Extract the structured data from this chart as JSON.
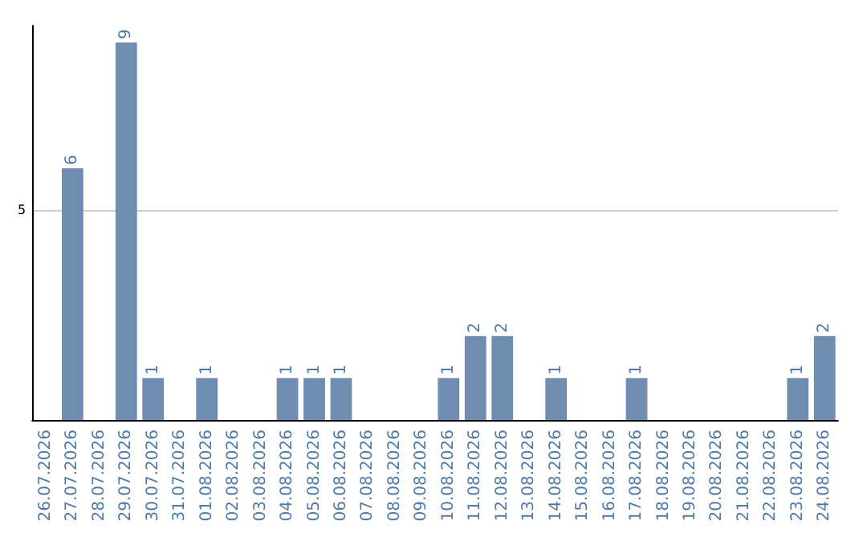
{
  "chart_data": {
    "type": "bar",
    "categories": [
      "26.07.2026",
      "27.07.2026",
      "28.07.2026",
      "29.07.2026",
      "30.07.2026",
      "31.07.2026",
      "01.08.2026",
      "02.08.2026",
      "03.08.2026",
      "04.08.2026",
      "05.08.2026",
      "06.08.2026",
      "07.08.2026",
      "08.08.2026",
      "09.08.2026",
      "10.08.2026",
      "11.08.2026",
      "12.08.2026",
      "13.08.2026",
      "14.08.2026",
      "15.08.2026",
      "16.08.2026",
      "17.08.2026",
      "18.08.2026",
      "19.08.2026",
      "20.08.2026",
      "21.08.2026",
      "22.08.2026",
      "23.08.2026",
      "24.08.2026"
    ],
    "values": [
      0,
      6,
      0,
      9,
      1,
      0,
      1,
      0,
      0,
      1,
      1,
      1,
      0,
      0,
      0,
      1,
      2,
      2,
      0,
      1,
      0,
      0,
      1,
      0,
      0,
      0,
      0,
      0,
      1,
      2
    ],
    "value_labels": [
      null,
      "6",
      null,
      "9",
      "1",
      null,
      "1",
      null,
      null,
      "1",
      "1",
      "1",
      null,
      null,
      null,
      "1",
      "2",
      "2",
      null,
      "1",
      null,
      null,
      "1",
      null,
      null,
      null,
      null,
      null,
      "1",
      "2"
    ],
    "color": "#6e8db0",
    "ylim": [
      0,
      9.4
    ],
    "yticks": [
      5
    ],
    "grid": "y"
  }
}
